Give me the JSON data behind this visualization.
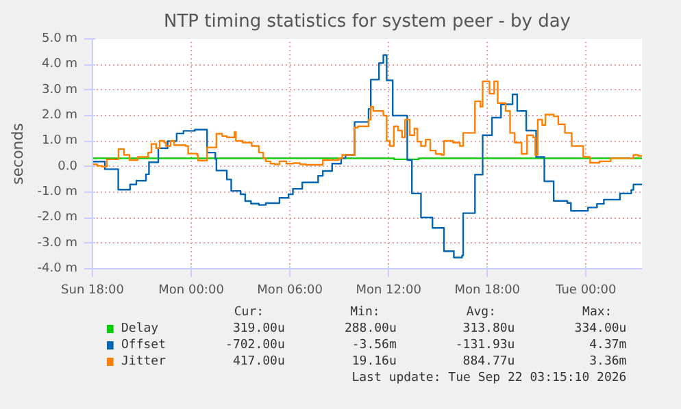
{
  "chart_data": {
    "type": "step",
    "title": "NTP timing statistics for system peer - by day",
    "ylabel": "seconds",
    "xlim": [
      "2026-09-20T18:00",
      "2026-09-22T03:24"
    ],
    "ylim": [
      -4,
      5
    ],
    "xticks": [
      {
        "value": "2026-09-20T18:00",
        "label": "Sun 18:00"
      },
      {
        "value": "2026-09-21T00:00",
        "label": "Mon 00:00"
      },
      {
        "value": "2026-09-21T06:00",
        "label": "Mon 06:00"
      },
      {
        "value": "2026-09-21T12:00",
        "label": "Mon 12:00"
      },
      {
        "value": "2026-09-21T18:00",
        "label": "Mon 18:00"
      },
      {
        "value": "2026-09-22T00:00",
        "label": "Tue 00:00"
      }
    ],
    "yticks": [
      {
        "value": -4,
        "label": "-4.0 m"
      },
      {
        "value": -3,
        "label": "-3.0 m"
      },
      {
        "value": -2,
        "label": "-2.0 m"
      },
      {
        "value": -1,
        "label": "-1.0 m"
      },
      {
        "value": 0,
        "label": "0.0"
      },
      {
        "value": 1,
        "label": "1.0 m"
      },
      {
        "value": 2,
        "label": "2.0 m"
      },
      {
        "value": 3,
        "label": "3.0 m"
      },
      {
        "value": 4,
        "label": "4.0 m"
      },
      {
        "value": 5,
        "label": "5.0 m"
      }
    ],
    "grid": true,
    "legend": "bottom",
    "series": [
      {
        "name": "Delay",
        "color": "#00cc00",
        "x": [
          "2026-09-20T18:00",
          "2026-09-21T12:15",
          "2026-09-21T12:20",
          "2026-09-21T13:40",
          "2026-09-21T13:50",
          "2026-09-22T03:24"
        ],
        "values": [
          0.33,
          0.33,
          0.29,
          0.29,
          0.33,
          0.32
        ]
      },
      {
        "name": "Offset",
        "color": "#0066b3",
        "x": [
          "2026-09-20T18:00",
          "2026-09-20T18:45",
          "2026-09-20T19:34",
          "2026-09-20T20:17",
          "2026-09-20T20:40",
          "2026-09-20T21:15",
          "2026-09-20T21:26",
          "2026-09-20T22:00",
          "2026-09-20T22:34",
          "2026-09-20T23:07",
          "2026-09-20T23:32",
          "2026-09-21T00:13",
          "2026-09-21T00:58",
          "2026-09-21T01:28",
          "2026-09-21T01:32",
          "2026-09-21T02:10",
          "2026-09-21T02:26",
          "2026-09-21T03:00",
          "2026-09-21T03:17",
          "2026-09-21T03:38",
          "2026-09-21T04:07",
          "2026-09-21T04:32",
          "2026-09-21T05:22",
          "2026-09-21T05:55",
          "2026-09-21T06:11",
          "2026-09-21T06:45",
          "2026-09-21T07:43",
          "2026-09-21T08:00",
          "2026-09-21T08:34",
          "2026-09-21T09:07",
          "2026-09-21T09:23",
          "2026-09-21T09:56",
          "2026-09-21T10:47",
          "2026-09-21T10:55",
          "2026-09-21T11:25",
          "2026-09-21T11:41",
          "2026-09-21T11:53",
          "2026-09-21T12:15",
          "2026-09-21T13:08",
          "2026-09-21T13:25",
          "2026-09-21T13:58",
          "2026-09-21T14:40",
          "2026-09-21T15:22",
          "2026-09-21T15:58",
          "2026-09-21T16:28",
          "2026-09-21T16:32",
          "2026-09-21T17:15",
          "2026-09-21T17:43",
          "2026-09-21T18:17",
          "2026-09-21T18:50",
          "2026-09-21T19:32",
          "2026-09-21T19:49",
          "2026-09-21T20:22",
          "2026-09-21T20:58",
          "2026-09-21T21:28",
          "2026-09-21T22:02",
          "2026-09-21T22:52",
          "2026-09-21T23:05",
          "2026-09-22T00:07",
          "2026-09-22T00:40",
          "2026-09-22T01:05",
          "2026-09-22T02:04",
          "2026-09-22T02:45",
          "2026-09-22T02:53",
          "2026-09-22T03:24"
        ],
        "values": [
          0.2,
          -0.1,
          -0.9,
          -0.7,
          -0.55,
          -0.3,
          0.17,
          0.72,
          1.0,
          1.3,
          1.4,
          1.45,
          0.55,
          0.3,
          -0.15,
          -0.5,
          -0.95,
          -1.08,
          -1.35,
          -1.45,
          -1.5,
          -1.43,
          -1.22,
          -1.08,
          -0.87,
          -0.62,
          -0.36,
          -0.17,
          0.12,
          0.33,
          0.46,
          1.75,
          2.26,
          3.41,
          4.06,
          4.37,
          3.38,
          2.0,
          0.26,
          -1.05,
          -1.99,
          -2.4,
          -3.31,
          -3.56,
          -3.48,
          -1.82,
          -0.31,
          1.23,
          1.92,
          2.44,
          2.83,
          2.18,
          1.41,
          0.38,
          -0.57,
          -1.34,
          -1.42,
          -1.73,
          -1.6,
          -1.46,
          -1.29,
          -1.05,
          -0.91,
          -0.7,
          -0.7
        ]
      },
      {
        "name": "Jitter",
        "color": "#ff8000",
        "x": [
          "2026-09-20T18:00",
          "2026-09-20T18:17",
          "2026-09-20T18:35",
          "2026-09-20T18:52",
          "2026-09-20T19:35",
          "2026-09-20T19:55",
          "2026-09-20T20:15",
          "2026-09-20T20:45",
          "2026-09-20T21:23",
          "2026-09-20T21:35",
          "2026-09-20T21:52",
          "2026-09-20T22:05",
          "2026-09-20T22:22",
          "2026-09-20T22:28",
          "2026-09-20T22:45",
          "2026-09-20T22:58",
          "2026-09-20T23:40",
          "2026-09-20T23:49",
          "2026-09-21T00:22",
          "2026-09-21T00:25",
          "2026-09-21T00:58",
          "2026-09-21T01:32",
          "2026-09-21T01:53",
          "2026-09-21T02:10",
          "2026-09-21T02:38",
          "2026-09-21T02:43",
          "2026-09-21T03:08",
          "2026-09-21T03:41",
          "2026-09-21T04:07",
          "2026-09-21T04:23",
          "2026-09-21T04:32",
          "2026-09-21T04:49",
          "2026-09-21T05:05",
          "2026-09-21T05:22",
          "2026-09-21T05:47",
          "2026-09-21T06:11",
          "2026-09-21T06:37",
          "2026-09-21T06:58",
          "2026-09-21T08:00",
          "2026-09-21T08:58",
          "2026-09-21T09:11",
          "2026-09-21T09:56",
          "2026-09-21T10:08",
          "2026-09-21T10:47",
          "2026-09-21T10:55",
          "2026-09-21T11:04",
          "2026-09-21T11:41",
          "2026-09-21T11:53",
          "2026-09-21T12:05",
          "2026-09-21T12:19",
          "2026-09-21T12:35",
          "2026-09-21T12:49",
          "2026-09-21T13:00",
          "2026-09-21T13:17",
          "2026-09-21T13:34",
          "2026-09-21T13:45",
          "2026-09-21T13:58",
          "2026-09-21T14:15",
          "2026-09-21T14:32",
          "2026-09-21T14:52",
          "2026-09-21T15:13",
          "2026-09-21T15:22",
          "2026-09-21T15:55",
          "2026-09-21T16:20",
          "2026-09-21T16:32",
          "2026-09-21T17:15",
          "2026-09-21T17:35",
          "2026-09-21T17:43",
          "2026-09-21T18:08",
          "2026-09-21T18:25",
          "2026-09-21T18:38",
          "2026-09-21T19:07",
          "2026-09-21T19:23",
          "2026-09-21T19:40",
          "2026-09-21T20:05",
          "2026-09-21T20:25",
          "2026-09-21T20:47",
          "2026-09-21T20:55",
          "2026-09-21T21:04",
          "2026-09-21T21:20",
          "2026-09-21T21:32",
          "2026-09-21T22:02",
          "2026-09-21T22:19",
          "2026-09-21T22:43",
          "2026-09-21T23:08",
          "2026-09-21T23:50",
          "2026-09-22T00:15",
          "2026-09-22T00:49",
          "2026-09-22T01:30",
          "2026-09-22T02:53",
          "2026-09-22T03:10",
          "2026-09-22T03:24"
        ],
        "values": [
          0.09,
          0.03,
          0.0,
          0.29,
          0.69,
          0.46,
          0.26,
          0.38,
          0.55,
          0.89,
          0.72,
          1.01,
          0.94,
          0.81,
          1.01,
          0.84,
          0.81,
          0.51,
          0.46,
          0.24,
          0.75,
          1.29,
          1.2,
          1.15,
          1.36,
          1.01,
          0.94,
          0.81,
          0.55,
          0.33,
          0.21,
          0.12,
          0.09,
          0.21,
          0.12,
          0.14,
          0.09,
          0.07,
          0.26,
          0.33,
          0.46,
          1.53,
          1.58,
          1.84,
          2.35,
          2.18,
          2.0,
          1.01,
          0.81,
          1.58,
          1.41,
          1.15,
          1.84,
          1.23,
          1.49,
          0.98,
          0.81,
          1.06,
          0.63,
          0.5,
          0.46,
          1.01,
          0.94,
          0.81,
          1.32,
          2.56,
          2.35,
          3.34,
          2.86,
          3.34,
          2.49,
          2.18,
          1.32,
          0.94,
          0.5,
          1.23,
          1.15,
          0.46,
          1.84,
          1.63,
          2.04,
          1.97,
          1.66,
          1.32,
          0.81,
          0.38,
          0.15,
          0.21,
          0.33,
          0.46,
          0.42,
          0.42
        ]
      }
    ],
    "annotations": [
      "Cur:",
      "Min:",
      "Avg:",
      "Max:",
      "319.00u",
      "288.00u",
      "313.80u",
      "334.00u",
      "-702.00u",
      "-3.56m",
      "-131.93u",
      "4.37m",
      "417.00u",
      "19.16u",
      "884.77u",
      "3.36m",
      "Last update: Tue Sep 22 03:15:10 2026"
    ]
  }
}
